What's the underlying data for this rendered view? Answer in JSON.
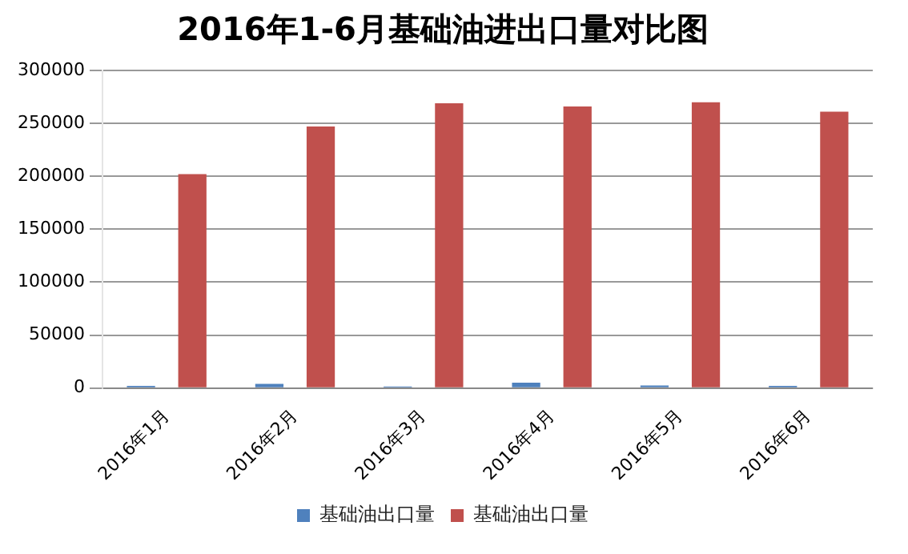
{
  "chart_data": {
    "type": "bar",
    "title": "2016年1-6月基础油进出口量对比图",
    "categories": [
      "2016年1月",
      "2016年2月",
      "2016年3月",
      "2016年4月",
      "2016年5月",
      "2016年6月"
    ],
    "series": [
      {
        "name": "基础油出口量",
        "color": "#4f81bd",
        "values": [
          2000,
          4000,
          1500,
          5000,
          2500,
          2000
        ]
      },
      {
        "name": "基础油出口量",
        "color": "#c0504d",
        "values": [
          202000,
          247000,
          269000,
          266000,
          270000,
          261000
        ]
      }
    ],
    "ylim": [
      0,
      300000
    ],
    "yticks": [
      0,
      50000,
      100000,
      150000,
      200000,
      250000,
      300000
    ],
    "grid": "y",
    "legend": "bottom"
  }
}
